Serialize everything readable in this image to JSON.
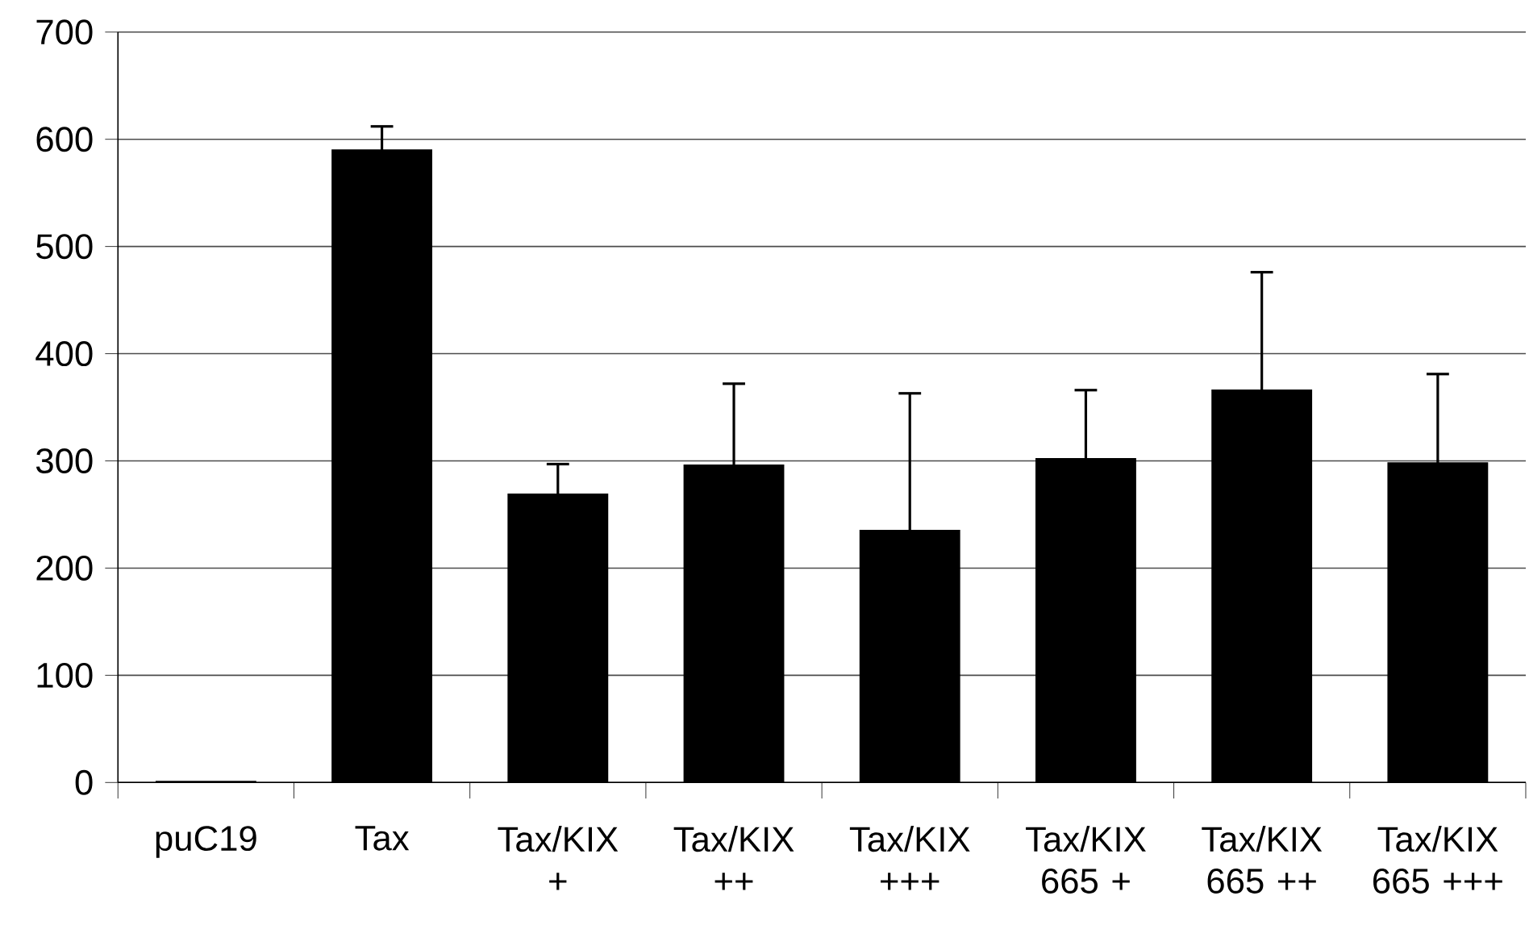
{
  "chart_data": {
    "type": "bar",
    "categories": [
      "puC19",
      "Tax",
      "Tax/KIX +",
      "Tax/KIX ++",
      "Tax/KIX +++",
      "Tax/KIX 665 +",
      "Tax/KIX 665 ++",
      "Tax/KIX 665 +++"
    ],
    "values": [
      1,
      590,
      269,
      296,
      235,
      302,
      366,
      298
    ],
    "errors": [
      null,
      [
        590,
        612
      ],
      [
        269,
        297
      ],
      [
        296,
        372
      ],
      [
        235,
        363
      ],
      [
        302,
        366
      ],
      [
        366,
        476
      ],
      [
        298,
        381
      ]
    ],
    "color": "#000000",
    "ylim": [
      0,
      700
    ],
    "yticks": [
      0,
      100,
      200,
      300,
      400,
      500,
      600,
      700
    ],
    "grid": "y"
  }
}
